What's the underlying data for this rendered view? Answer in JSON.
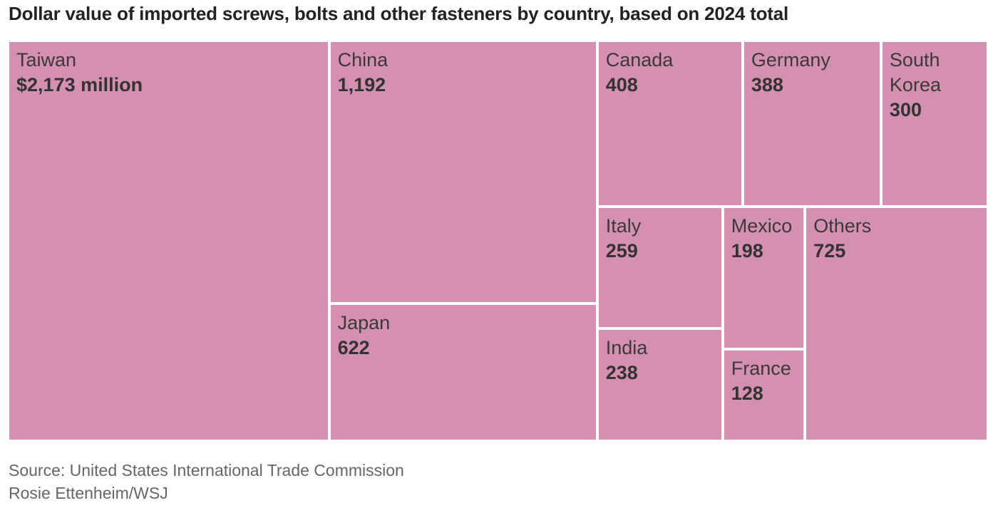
{
  "chart_data": {
    "type": "treemap",
    "title": "Dollar value of imported screws, bolts and other fasteners by country, based on 2024 total",
    "unit_note": "$ million",
    "color": "#d48fb1",
    "items": [
      {
        "name": "Taiwan",
        "value": 2173,
        "label": "$2,173 million"
      },
      {
        "name": "China",
        "value": 1192,
        "label": "1,192"
      },
      {
        "name": "Japan",
        "value": 622,
        "label": "622"
      },
      {
        "name": "Canada",
        "value": 408,
        "label": "408"
      },
      {
        "name": "Germany",
        "value": 388,
        "label": "388"
      },
      {
        "name": "South Korea",
        "value": 300,
        "label": "300"
      },
      {
        "name": "Italy",
        "value": 259,
        "label": "259"
      },
      {
        "name": "India",
        "value": 238,
        "label": "238"
      },
      {
        "name": "Mexico",
        "value": 198,
        "label": "198"
      },
      {
        "name": "France",
        "value": 128,
        "label": "128"
      },
      {
        "name": "Others",
        "value": 725,
        "label": "725"
      }
    ]
  },
  "footer": {
    "source": "Source: United States International Trade Commission",
    "credit": "Rosie Ettenheim/WSJ"
  }
}
